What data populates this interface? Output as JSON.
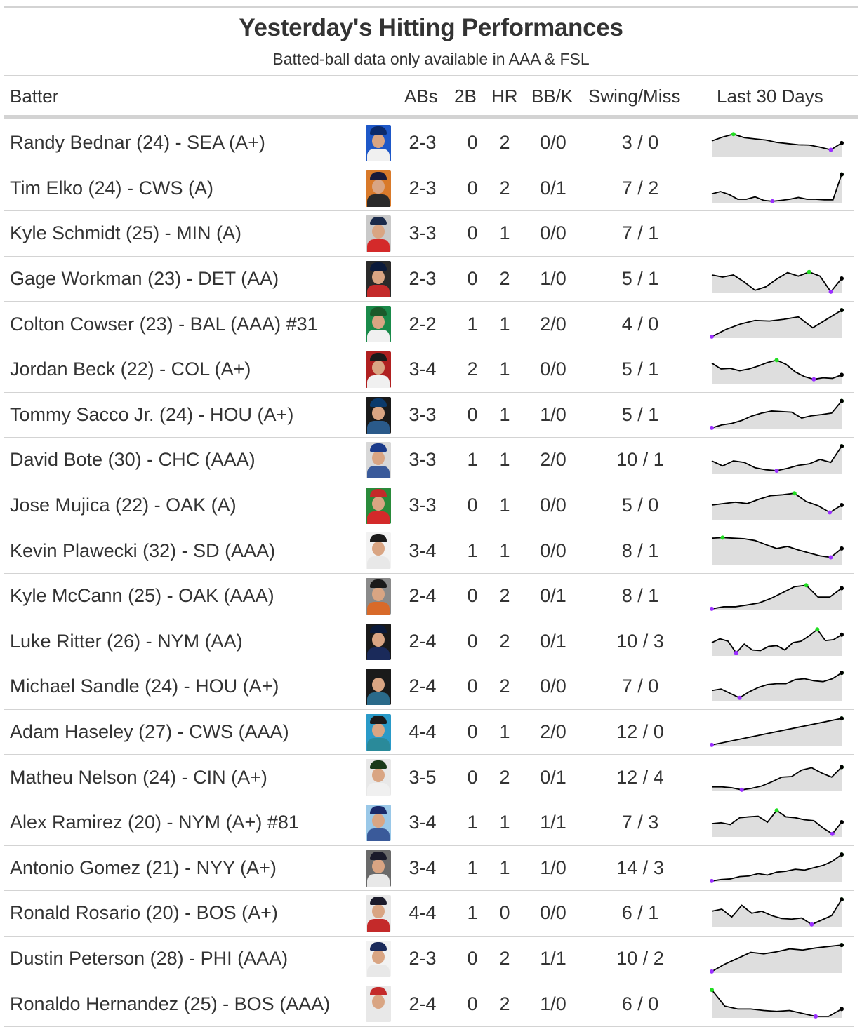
{
  "title": "Yesterday's Hitting Performances",
  "subtitle": "Batted-ball data only available in AAA & FSL",
  "columns": {
    "batter": "Batter",
    "abs": "ABs",
    "doubles": "2B",
    "hr": "HR",
    "bbk": "BB/K",
    "swing_miss": "Swing/Miss",
    "last30": "Last 30 Days"
  },
  "colors": {
    "high_point": "#22dd22",
    "low_point": "#9b30ff",
    "last_point": "#000000",
    "area_fill": "#dedede",
    "line": "#000000"
  },
  "rows": [
    {
      "name": "Randy Bednar (24) - SEA (A+)",
      "abs": "2-3",
      "doubles": "0",
      "hr": "2",
      "bbk": "0/0",
      "swing_miss": "3 / 0",
      "photo": {
        "bg": "#1e58c8",
        "cap": "#0b2a6b",
        "jersey": "#f0f0f0"
      },
      "spark": [
        0.55,
        0.68,
        0.78,
        0.66,
        0.62,
        0.58,
        0.5,
        0.46,
        0.42,
        0.41,
        0.34,
        0.25,
        0.48
      ]
    },
    {
      "name": "Tim Elko (24) - CWS (A)",
      "abs": "2-3",
      "doubles": "0",
      "hr": "2",
      "bbk": "0/1",
      "swing_miss": "7 / 2",
      "photo": {
        "bg": "#d97a2a",
        "cap": "#1a1a3a",
        "jersey": "#2a2a2a"
      },
      "spark": [
        0.3,
        0.38,
        0.28,
        0.12,
        0.12,
        0.2,
        0.08,
        0.05,
        0.08,
        0.12,
        0.18,
        0.12,
        0.12,
        0.1,
        0.1,
        0.96
      ]
    },
    {
      "name": "Kyle Schmidt (25) - MIN (A)",
      "abs": "3-3",
      "doubles": "0",
      "hr": "1",
      "bbk": "0/0",
      "swing_miss": "7 / 1",
      "photo": {
        "bg": "#c9c9c9",
        "cap": "#1a2a4a",
        "jersey": "#d42a2a"
      },
      "spark": null
    },
    {
      "name": "Gage Workman (23) - DET (AA)",
      "abs": "2-3",
      "doubles": "0",
      "hr": "2",
      "bbk": "1/0",
      "swing_miss": "5 / 1",
      "photo": {
        "bg": "#2a2a2a",
        "cap": "#0b1a3a",
        "jersey": "#c42a2a"
      },
      "spark": [
        0.62,
        0.55,
        0.62,
        0.38,
        0.1,
        0.22,
        0.48,
        0.7,
        0.58,
        0.72,
        0.58,
        0.05,
        0.5
      ]
    },
    {
      "name": "Colton Cowser (23) - BAL (AAA) #31",
      "abs": "2-2",
      "doubles": "1",
      "hr": "1",
      "bbk": "2/0",
      "swing_miss": "4 / 0",
      "photo": {
        "bg": "#1a8a4a",
        "cap": "#1a5a2a",
        "jersey": "#f0f0f0"
      },
      "spark": [
        0.05,
        0.3,
        0.48,
        0.6,
        0.58,
        0.64,
        0.72,
        0.35,
        0.65,
        0.95
      ]
    },
    {
      "name": "Jordan Beck (22) - COL (A+)",
      "abs": "3-4",
      "doubles": "2",
      "hr": "1",
      "bbk": "0/0",
      "swing_miss": "5 / 1",
      "photo": {
        "bg": "#b02020",
        "cap": "#1a1a1a",
        "jersey": "#f0f0f0"
      },
      "spark": [
        0.7,
        0.5,
        0.52,
        0.44,
        0.5,
        0.6,
        0.72,
        0.8,
        0.66,
        0.4,
        0.24,
        0.15,
        0.2,
        0.18,
        0.3
      ]
    },
    {
      "name": "Tommy Sacco Jr. (24) - HOU (A+)",
      "abs": "3-3",
      "doubles": "0",
      "hr": "1",
      "bbk": "1/0",
      "swing_miss": "5 / 1",
      "photo": {
        "bg": "#1a1a1a",
        "cap": "#0b3a6b",
        "jersey": "#2a5a8a"
      },
      "spark": [
        0.05,
        0.15,
        0.2,
        0.3,
        0.45,
        0.55,
        0.62,
        0.6,
        0.58,
        0.38,
        0.46,
        0.5,
        0.55,
        0.96
      ]
    },
    {
      "name": "David Bote (30) - CHC (AAA)",
      "abs": "3-3",
      "doubles": "1",
      "hr": "1",
      "bbk": "2/0",
      "swing_miss": "10 / 1",
      "photo": {
        "bg": "#d8d8d8",
        "cap": "#1a3a8a",
        "jersey": "#3a5a9a"
      },
      "spark": [
        0.45,
        0.28,
        0.45,
        0.4,
        0.22,
        0.15,
        0.12,
        0.2,
        0.3,
        0.35,
        0.5,
        0.4,
        0.95
      ]
    },
    {
      "name": "Jose Mujica (22) - OAK (A)",
      "abs": "3-3",
      "doubles": "0",
      "hr": "1",
      "bbk": "0/0",
      "swing_miss": "5 / 0",
      "photo": {
        "bg": "#2a8a3a",
        "cap": "#c42a2a",
        "jersey": "#d42a2a"
      },
      "spark": [
        0.5,
        0.55,
        0.6,
        0.55,
        0.7,
        0.82,
        0.85,
        0.9,
        0.62,
        0.48,
        0.25,
        0.5
      ]
    },
    {
      "name": "Kevin Plawecki (32) - SD (AAA)",
      "abs": "3-4",
      "doubles": "1",
      "hr": "1",
      "bbk": "0/0",
      "swing_miss": "8 / 1",
      "photo": {
        "bg": "#f2f2f2",
        "cap": "#1a1a1a",
        "jersey": "#e8e8e8"
      },
      "spark": [
        0.9,
        0.92,
        0.9,
        0.88,
        0.82,
        0.68,
        0.55,
        0.62,
        0.5,
        0.4,
        0.3,
        0.25,
        0.55
      ]
    },
    {
      "name": "Kyle McCann (25) - OAK (AAA)",
      "abs": "2-4",
      "doubles": "0",
      "hr": "2",
      "bbk": "0/1",
      "swing_miss": "8 / 1",
      "photo": {
        "bg": "#8a8a8a",
        "cap": "#1a1a1a",
        "jersey": "#d86a2a"
      },
      "spark": [
        0.05,
        0.12,
        0.12,
        0.18,
        0.25,
        0.4,
        0.6,
        0.8,
        0.85,
        0.45,
        0.45,
        0.75
      ]
    },
    {
      "name": "Luke Ritter (26) - NYM (AA)",
      "abs": "2-4",
      "doubles": "0",
      "hr": "2",
      "bbk": "0/1",
      "swing_miss": "10 / 3",
      "photo": {
        "bg": "#1a1a1a",
        "cap": "#0b1a3a",
        "jersey": "#1a2a5a"
      },
      "spark": [
        0.45,
        0.58,
        0.5,
        0.1,
        0.4,
        0.2,
        0.18,
        0.32,
        0.35,
        0.2,
        0.45,
        0.5,
        0.68,
        0.9,
        0.52,
        0.55,
        0.72
      ]
    },
    {
      "name": "Michael Sandle (24) - HOU (A+)",
      "abs": "2-4",
      "doubles": "0",
      "hr": "2",
      "bbk": "0/0",
      "swing_miss": "7 / 0",
      "photo": {
        "bg": "#1a1a1a",
        "cap": "#1a1a1a",
        "jersey": "#2a6a8a"
      },
      "spark": [
        0.35,
        0.4,
        0.25,
        0.1,
        0.3,
        0.45,
        0.55,
        0.58,
        0.58,
        0.72,
        0.75,
        0.68,
        0.65,
        0.75,
        0.95
      ]
    },
    {
      "name": "Adam Haseley (27) - CWS (AAA)",
      "abs": "4-4",
      "doubles": "0",
      "hr": "1",
      "bbk": "2/0",
      "swing_miss": "12 / 0",
      "photo": {
        "bg": "#2a9ac8",
        "cap": "#1a1a1a",
        "jersey": "#2a8a9a"
      },
      "spark": [
        0.05,
        0.95
      ]
    },
    {
      "name": "Matheu Nelson (24) - CIN (A+)",
      "abs": "3-5",
      "doubles": "0",
      "hr": "2",
      "bbk": "0/1",
      "swing_miss": "12 / 4",
      "photo": {
        "bg": "#e8e8e8",
        "cap": "#1a3a1a",
        "jersey": "#f0f0f0"
      },
      "spark": [
        0.15,
        0.15,
        0.12,
        0.05,
        0.1,
        0.18,
        0.32,
        0.48,
        0.5,
        0.72,
        0.8,
        0.62,
        0.48,
        0.82
      ]
    },
    {
      "name": "Alex Ramirez (20) - NYM (A+) #81",
      "abs": "3-4",
      "doubles": "1",
      "hr": "1",
      "bbk": "1/1",
      "swing_miss": "7 / 3",
      "photo": {
        "bg": "#9ac8e8",
        "cap": "#1a2a6a",
        "jersey": "#3a5a9a"
      },
      "spark": [
        0.45,
        0.48,
        0.42,
        0.65,
        0.68,
        0.7,
        0.5,
        0.9,
        0.68,
        0.65,
        0.58,
        0.55,
        0.3,
        0.1,
        0.5
      ]
    },
    {
      "name": "Antonio Gomez (21) - NYY (A+)",
      "abs": "3-4",
      "doubles": "1",
      "hr": "1",
      "bbk": "1/0",
      "swing_miss": "14 / 3",
      "photo": {
        "bg": "#6a6a6a",
        "cap": "#1a1a2a",
        "jersey": "#e8e8e8"
      },
      "spark": [
        0.05,
        0.1,
        0.12,
        0.2,
        0.22,
        0.3,
        0.25,
        0.35,
        0.38,
        0.45,
        0.42,
        0.5,
        0.58,
        0.72,
        0.95
      ]
    },
    {
      "name": "Ronald Rosario (20) - BOS (A+)",
      "abs": "4-4",
      "doubles": "1",
      "hr": "0",
      "bbk": "0/0",
      "swing_miss": "6 / 1",
      "photo": {
        "bg": "#e8e8e8",
        "cap": "#1a1a2a",
        "jersey": "#c42a2a"
      },
      "spark": [
        0.55,
        0.62,
        0.35,
        0.75,
        0.48,
        0.55,
        0.4,
        0.3,
        0.28,
        0.32,
        0.1,
        0.25,
        0.4,
        0.95
      ]
    },
    {
      "name": "Dustin Peterson (28) - PHI (AAA)",
      "abs": "2-3",
      "doubles": "0",
      "hr": "2",
      "bbk": "1/1",
      "swing_miss": "10 / 2",
      "photo": {
        "bg": "#f2f2f2",
        "cap": "#1a2a5a",
        "jersey": "#e8e8e8"
      },
      "spark": [
        0.05,
        0.3,
        0.5,
        0.7,
        0.65,
        0.72,
        0.82,
        0.78,
        0.85,
        0.9,
        0.95
      ]
    },
    {
      "name": "Ronaldo Hernandez (25) - BOS (AAA)",
      "abs": "2-4",
      "doubles": "0",
      "hr": "2",
      "bbk": "1/0",
      "swing_miss": "6 / 0",
      "photo": {
        "bg": "#e8e8e8",
        "cap": "#c42a2a",
        "jersey": "#e8e8e8"
      },
      "spark": [
        0.95,
        0.4,
        0.3,
        0.3,
        0.25,
        0.22,
        0.25,
        0.15,
        0.05,
        0.05,
        0.3
      ]
    }
  ]
}
